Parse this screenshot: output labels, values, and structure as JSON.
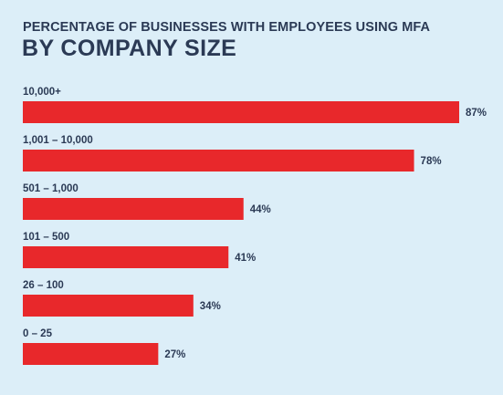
{
  "header": {
    "subtitle": "PERCENTAGE OF BUSINESSES WITH EMPLOYEES USING MFA",
    "title": "BY COMPANY SIZE"
  },
  "colors": {
    "background": "#dceef8",
    "bar": "#e8282b",
    "text": "#2b3a55"
  },
  "chart_data": {
    "type": "bar",
    "orientation": "horizontal",
    "title": "BY COMPANY SIZE",
    "subtitle": "PERCENTAGE OF BUSINESSES WITH EMPLOYEES USING MFA",
    "categories": [
      "10,000+",
      "1,001 – 10,000",
      "501 – 1,000",
      "101 – 500",
      "26 – 100",
      "0 – 25"
    ],
    "values": [
      87,
      78,
      44,
      41,
      34,
      27
    ],
    "value_labels": [
      "87%",
      "78%",
      "44%",
      "41%",
      "34%",
      "27%"
    ],
    "xlim": [
      0,
      100
    ],
    "grid": false,
    "legend": "none"
  }
}
